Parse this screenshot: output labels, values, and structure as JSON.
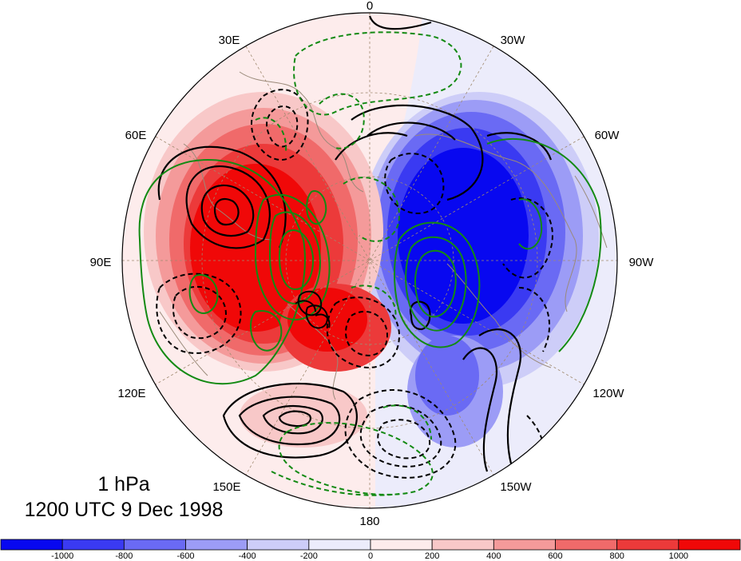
{
  "map": {
    "projection": "polar-stereographic",
    "hemisphere": "northern",
    "longitude_labels": [
      "0",
      "30W",
      "60W",
      "90W",
      "120W",
      "150W",
      "180",
      "150E",
      "120E",
      "90E",
      "60E",
      "30E"
    ],
    "shading_colors": {
      "neg_1000": "#0808f0",
      "neg_800": "#3a3af2",
      "neg_600": "#6a6af4",
      "neg_400": "#9c9cf6",
      "neg_200": "#cdcdf8",
      "neg_0": "#ececfb",
      "pos_0": "#fdecec",
      "pos_200": "#f8c8c8",
      "pos_400": "#f49a9a",
      "pos_600": "#f06a6a",
      "pos_800": "#ec3a3a",
      "pos_1000": "#f00808"
    },
    "contour_colors": {
      "black": "#000000",
      "green": "#138a13",
      "coast": "#9a8a7a"
    }
  },
  "caption": {
    "level": "1 hPa",
    "time": "1200 UTC 9 Dec 1998"
  },
  "colorbar": {
    "ticks": [
      "-1000",
      "-800",
      "-600",
      "-400",
      "-200",
      "0",
      "200",
      "400",
      "600",
      "800",
      "1000"
    ],
    "colors": [
      "#0808f0",
      "#3a3af2",
      "#6a6af4",
      "#9c9cf6",
      "#cdcdf8",
      "#ececfb",
      "#fdecec",
      "#f8c8c8",
      "#f49a9a",
      "#f06a6a",
      "#ec3a3a",
      "#f00808"
    ]
  }
}
